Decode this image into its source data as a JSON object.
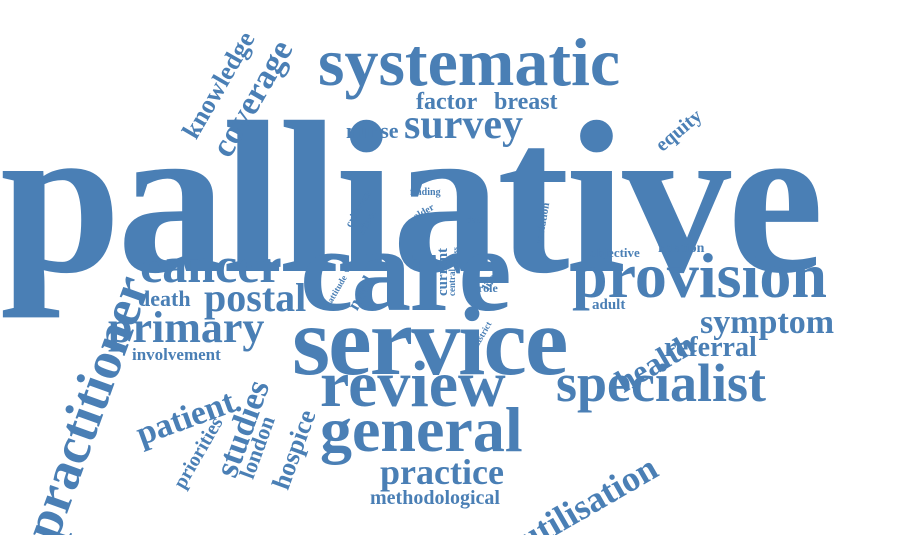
{
  "word_cloud": {
    "color": "#4a7fb5",
    "words": [
      "palliative",
      "care",
      "service",
      "systematic",
      "review",
      "general",
      "provision",
      "specialist",
      "practitioner",
      "cancer",
      "primary",
      "postal",
      "practice",
      "utilisation",
      "coverage",
      "knowledge",
      "survey",
      "factor",
      "breast",
      "nurse",
      "symptom",
      "health",
      "referral",
      "patient",
      "studies",
      "hospice",
      "london",
      "priorities",
      "involvement",
      "death",
      "methodological",
      "equity",
      "objective",
      "relation",
      "adult",
      "need",
      "current",
      "life",
      "role",
      "central",
      "district",
      "attitude",
      "criterion",
      "effect",
      "finding",
      "older",
      "data",
      "variation",
      "access"
    ]
  }
}
